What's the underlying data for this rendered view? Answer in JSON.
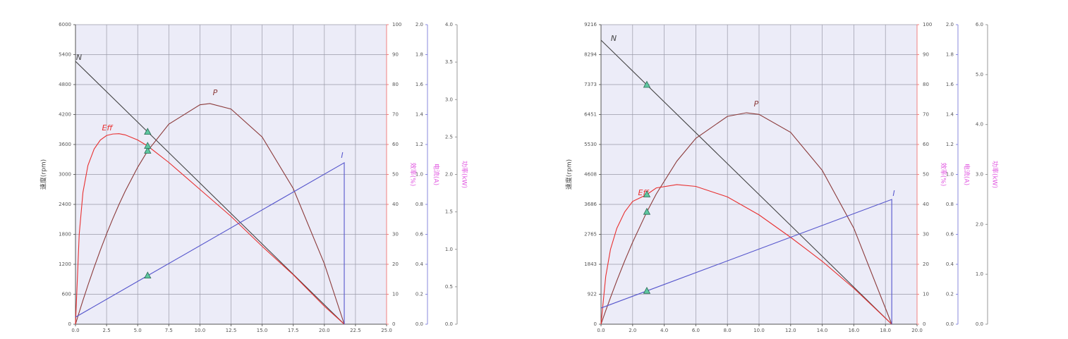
{
  "chart_data": [
    {
      "type": "line",
      "grid": true,
      "marker_x": 5.8,
      "xlim": [
        0,
        25
      ],
      "xticks": [
        {
          "value": 0,
          "label": "0.0"
        },
        {
          "value": 2.5,
          "label": "2.5"
        },
        {
          "value": 5,
          "label": "5.0"
        },
        {
          "value": 7.5,
          "label": "7.5"
        },
        {
          "value": 10,
          "label": "10.0"
        },
        {
          "value": 12.5,
          "label": "12.5"
        },
        {
          "value": 15,
          "label": "15.0"
        },
        {
          "value": 17.5,
          "label": "17.5"
        },
        {
          "value": 20,
          "label": "20.0"
        },
        {
          "value": 22.5,
          "label": "22.5"
        },
        {
          "value": 25,
          "label": "25.0"
        }
      ],
      "ylim": [
        0,
        6000
      ],
      "yticks": [
        0,
        600,
        1200,
        1800,
        2400,
        3000,
        3600,
        4200,
        4800,
        5400,
        6000
      ],
      "ylabel": "速度(rpm)",
      "y2lim": [
        0,
        100
      ],
      "y2ticks": [
        0,
        10,
        20,
        30,
        40,
        50,
        60,
        70,
        80,
        90,
        100
      ],
      "y2label": "效率(%)",
      "y3lim": [
        0,
        2
      ],
      "y3ticks": [
        {
          "value": 0,
          "label": "0.0"
        },
        {
          "value": 0.2,
          "label": "0.2"
        },
        {
          "value": 0.4,
          "label": "0.4"
        },
        {
          "value": 0.6,
          "label": "0.6"
        },
        {
          "value": 0.8,
          "label": "0.8"
        },
        {
          "value": 1,
          "label": "1.0"
        },
        {
          "value": 1.2,
          "label": "1.2"
        },
        {
          "value": 1.4,
          "label": "1.4"
        },
        {
          "value": 1.6,
          "label": "1.6"
        },
        {
          "value": 1.8,
          "label": "1.8"
        },
        {
          "value": 2,
          "label": "2.0"
        }
      ],
      "y3label": "电流(A)",
      "y4lim": [
        0,
        4
      ],
      "y4ticks": [
        {
          "value": 0,
          "label": "0.0"
        },
        {
          "value": 0.5,
          "label": "0.5"
        },
        {
          "value": 1,
          "label": "1.0"
        },
        {
          "value": 1.5,
          "label": "1.5"
        },
        {
          "value": 2,
          "label": "2.0"
        },
        {
          "value": 2.5,
          "label": "2.5"
        },
        {
          "value": 3,
          "label": "3.0"
        },
        {
          "value": 3.5,
          "label": "3.5"
        },
        {
          "value": 4,
          "label": "4.0"
        }
      ],
      "y4label": "功率(kW)",
      "series": [
        {
          "name": "N",
          "color": "#444444",
          "axis": "y",
          "x": [
            0,
            5.8,
            21.6
          ],
          "values": [
            5266,
            3852,
            0
          ]
        },
        {
          "name": "P",
          "color": "#8b3a3a",
          "axis": "y4",
          "x": [
            0,
            0.3,
            0.6,
            1,
            1.5,
            2,
            2.5,
            3,
            3.5,
            4,
            5,
            5.8,
            7.5,
            10,
            10.8,
            12.5,
            15,
            17.5,
            20,
            21.6
          ],
          "values": [
            0,
            0.161,
            0.318,
            0.52,
            0.761,
            0.99,
            1.206,
            1.409,
            1.6,
            1.778,
            2.096,
            2.315,
            2.671,
            2.93,
            2.946,
            2.873,
            2.5,
            1.812,
            0.808,
            0
          ]
        },
        {
          "name": "Eff",
          "color": "#e83030",
          "axis": "y2",
          "x": [
            0,
            0.3,
            0.6,
            1,
            1.5,
            2,
            2.5,
            3,
            3.5,
            4,
            5,
            5.8,
            7.5,
            10,
            12.5,
            15,
            17.5,
            20,
            21.6
          ],
          "values": [
            0,
            30,
            44,
            53,
            58.5,
            61.5,
            63,
            63.5,
            63.6,
            63.2,
            61.5,
            59.5,
            54,
            45,
            36,
            26,
            16.5,
            6,
            0
          ]
        },
        {
          "name": "I",
          "color": "#5555cc",
          "axis": "y3",
          "x": [
            0,
            5.8,
            21.6,
            21.6
          ],
          "values": [
            0.047,
            0.324,
            1.078,
            0
          ]
        }
      ]
    },
    {
      "type": "line",
      "grid": true,
      "marker_x": 2.9,
      "xlim": [
        0,
        20
      ],
      "xticks": [
        {
          "value": 0,
          "label": "0.0"
        },
        {
          "value": 2,
          "label": "2.0"
        },
        {
          "value": 4,
          "label": "4.0"
        },
        {
          "value": 6,
          "label": "6.0"
        },
        {
          "value": 8,
          "label": "8.0"
        },
        {
          "value": 10,
          "label": "10.0"
        },
        {
          "value": 12,
          "label": "12.0"
        },
        {
          "value": 14,
          "label": "14.0"
        },
        {
          "value": 16,
          "label": "16.0"
        },
        {
          "value": 18,
          "label": "18.0"
        },
        {
          "value": 20,
          "label": "20.0"
        }
      ],
      "ylim": [
        0,
        9216
      ],
      "yticks": [
        0,
        922,
        1843,
        2765,
        3686,
        4608,
        5530,
        6451,
        7373,
        8294,
        9216
      ],
      "ylabel": "速度(rpm)",
      "y2lim": [
        0,
        100
      ],
      "y2ticks": [
        0,
        10,
        20,
        30,
        40,
        50,
        60,
        70,
        80,
        90,
        100
      ],
      "y2label": "效率(%)",
      "y3lim": [
        0,
        2
      ],
      "y3ticks": [
        {
          "value": 0,
          "label": "0.0"
        },
        {
          "value": 0.2,
          "label": "0.2"
        },
        {
          "value": 0.4,
          "label": "0.4"
        },
        {
          "value": 0.6,
          "label": "0.6"
        },
        {
          "value": 0.8,
          "label": "0.8"
        },
        {
          "value": 1,
          "label": "1.0"
        },
        {
          "value": 1.2,
          "label": "1.2"
        },
        {
          "value": 1.4,
          "label": "1.4"
        },
        {
          "value": 1.6,
          "label": "1.6"
        },
        {
          "value": 1.8,
          "label": "1.8"
        },
        {
          "value": 2,
          "label": "2.0"
        }
      ],
      "y3label": "电流(A)",
      "y4lim": [
        0,
        6
      ],
      "y4ticks": [
        {
          "value": 0,
          "label": "0.0"
        },
        {
          "value": 1,
          "label": "1.0"
        },
        {
          "value": 2,
          "label": "2.0"
        },
        {
          "value": 3,
          "label": "3.0"
        },
        {
          "value": 4,
          "label": "4.0"
        },
        {
          "value": 5,
          "label": "5.0"
        },
        {
          "value": 6,
          "label": "6.0"
        }
      ],
      "y4label": "功率(kW)",
      "series": [
        {
          "name": "N",
          "color": "#444444",
          "axis": "y",
          "x": [
            0,
            2.9,
            18.4
          ],
          "values": [
            8739,
            7362,
            0
          ]
        },
        {
          "name": "P",
          "color": "#8b3a3a",
          "axis": "y4",
          "x": [
            0,
            0.3,
            0.6,
            1,
            1.5,
            2,
            2.9,
            3.5,
            4.8,
            6,
            8,
            9.2,
            10,
            12,
            14,
            16,
            18.4
          ],
          "values": [
            0,
            0.272,
            0.534,
            0.871,
            1.269,
            1.641,
            2.249,
            2.61,
            3.267,
            3.723,
            4.163,
            4.235,
            4.203,
            3.843,
            3.082,
            1.922,
            0
          ]
        },
        {
          "name": "Eff",
          "color": "#e83030",
          "axis": "y2",
          "x": [
            0,
            0.3,
            0.6,
            1,
            1.5,
            2,
            2.9,
            3.5,
            4.8,
            6,
            8,
            10,
            12,
            14,
            16,
            18.4
          ],
          "values": [
            0,
            16,
            25,
            32,
            37.5,
            41,
            43.3,
            45.5,
            46.6,
            46,
            42.5,
            36.5,
            29,
            21,
            12,
            0
          ]
        },
        {
          "name": "I",
          "color": "#5555cc",
          "axis": "y3",
          "x": [
            0,
            2.9,
            18.4,
            18.4
          ],
          "values": [
            0.108,
            0.222,
            0.833,
            0
          ]
        }
      ]
    }
  ]
}
